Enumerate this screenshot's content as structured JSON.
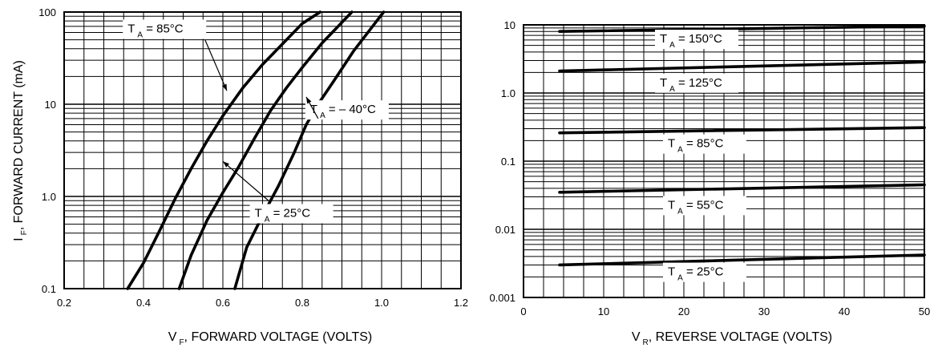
{
  "chart_data": [
    {
      "id": "forward",
      "type": "line",
      "x_scale": "linear",
      "y_scale": "log",
      "xlim": [
        0.2,
        1.2
      ],
      "ylim": [
        0.1,
        100
      ],
      "grid": true,
      "x_ticks": [
        "0.2",
        "0.4",
        "0.6",
        "0.8",
        "1.0",
        "1.2"
      ],
      "y_ticks": [
        {
          "value": 0.1,
          "label": "0.1"
        },
        {
          "value": 1,
          "label": "1.0"
        },
        {
          "value": 10,
          "label": "10"
        },
        {
          "value": 100,
          "label": "100"
        }
      ],
      "xlabel": {
        "main": "V",
        "sub": "F",
        "rest": ", FORWARD VOLTAGE (VOLTS)"
      },
      "ylabel": {
        "main": "I",
        "sub": "F",
        "rest": ", FORWARD CURRENT (mA)"
      },
      "series": [
        {
          "name": "T_A = 85°C",
          "label": {
            "t": "T",
            "sub": "A",
            "rest": " = 85°C"
          },
          "points": [
            [
              0.36,
              0.1
            ],
            [
              0.4,
              0.19
            ],
            [
              0.44,
              0.42
            ],
            [
              0.48,
              0.95
            ],
            [
              0.52,
              2.0
            ],
            [
              0.56,
              4.0
            ],
            [
              0.6,
              7.5
            ],
            [
              0.65,
              15
            ],
            [
              0.7,
              27
            ],
            [
              0.75,
              45
            ],
            [
              0.8,
              75
            ],
            [
              0.845,
              100
            ]
          ]
        },
        {
          "name": "T_A = 25°C",
          "label": {
            "t": "T",
            "sub": "A",
            "rest": " = 25°C"
          },
          "points": [
            [
              0.49,
              0.1
            ],
            [
              0.52,
              0.23
            ],
            [
              0.56,
              0.55
            ],
            [
              0.6,
              1.1
            ],
            [
              0.64,
              2.1
            ],
            [
              0.68,
              4.3
            ],
            [
              0.72,
              8.5
            ],
            [
              0.76,
              15
            ],
            [
              0.8,
              25
            ],
            [
              0.85,
              46
            ],
            [
              0.925,
              100
            ]
          ]
        },
        {
          "name": "T_A = -40°C",
          "label": {
            "t": "T",
            "sub": "A",
            "rest": " = – 40°C"
          },
          "points": [
            [
              0.63,
              0.1
            ],
            [
              0.66,
              0.28
            ],
            [
              0.7,
              0.62
            ],
            [
              0.74,
              1.3
            ],
            [
              0.78,
              3.0
            ],
            [
              0.81,
              6.0
            ],
            [
              0.84,
              10
            ],
            [
              0.88,
              18
            ],
            [
              0.93,
              38
            ],
            [
              1.005,
              100
            ]
          ]
        }
      ]
    },
    {
      "id": "reverse",
      "type": "line",
      "x_scale": "linear",
      "y_scale": "log",
      "xlim": [
        0,
        50
      ],
      "ylim": [
        0.001,
        10
      ],
      "grid": true,
      "x_ticks": [
        "0",
        "10",
        "20",
        "30",
        "40",
        "50"
      ],
      "y_ticks": [
        {
          "value": 0.001,
          "label": "0.001"
        },
        {
          "value": 0.01,
          "label": "0.01"
        },
        {
          "value": 0.1,
          "label": "0.1"
        },
        {
          "value": 1,
          "label": "1.0"
        },
        {
          "value": 10,
          "label": "10"
        }
      ],
      "xlabel": {
        "main": "V",
        "sub": "R",
        "rest": ", REVERSE VOLTAGE (VOLTS)"
      },
      "ylabel": {
        "main": "",
        "sub": "",
        "rest": ""
      },
      "series": [
        {
          "name": "T_A = 150°C",
          "label": {
            "t": "T",
            "sub": "A",
            "rest": " = 150°C"
          },
          "points": [
            [
              4.5,
              8.0
            ],
            [
              50,
              9.6
            ]
          ]
        },
        {
          "name": "T_A = 125°C",
          "label": {
            "t": "T",
            "sub": "A",
            "rest": " = 125°C"
          },
          "points": [
            [
              4.5,
              2.1
            ],
            [
              50,
              2.85
            ]
          ]
        },
        {
          "name": "T_A = 85°C",
          "label": {
            "t": "T",
            "sub": "A",
            "rest": " = 85°C"
          },
          "points": [
            [
              4.5,
              0.26
            ],
            [
              50,
              0.31
            ]
          ]
        },
        {
          "name": "T_A = 55°C",
          "label": {
            "t": "T",
            "sub": "A",
            "rest": " = 55°C"
          },
          "points": [
            [
              4.5,
              0.035
            ],
            [
              50,
              0.045
            ]
          ]
        },
        {
          "name": "T_A = 25°C",
          "label": {
            "t": "T",
            "sub": "A",
            "rest": " = 25°C"
          },
          "points": [
            [
              4.5,
              0.003
            ],
            [
              50,
              0.0042
            ]
          ]
        }
      ]
    }
  ]
}
